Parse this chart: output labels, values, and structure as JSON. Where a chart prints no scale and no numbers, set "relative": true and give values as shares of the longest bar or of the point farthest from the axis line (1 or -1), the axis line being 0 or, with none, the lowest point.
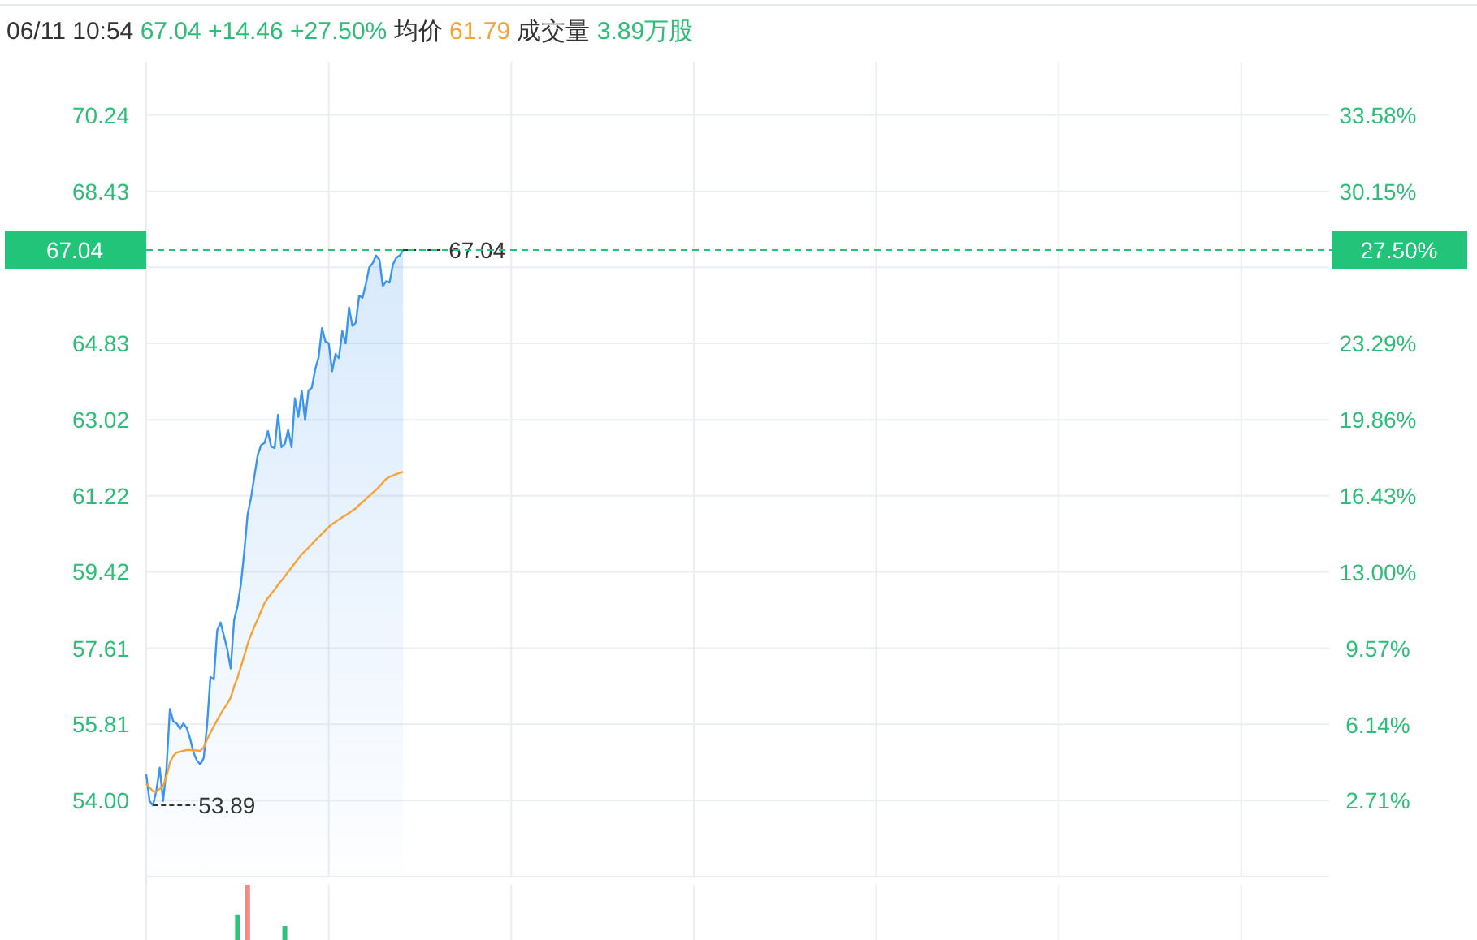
{
  "chart_data": [
    {
      "type": "line",
      "title": "06/11 10:54 67.04 +14.46 +27.50% 均价 61.79 成交量 3.89万股",
      "grid": true,
      "categories": [
        null,
        null,
        null,
        null,
        null,
        null,
        null,
        null,
        null,
        null,
        null,
        null,
        null,
        null,
        null,
        null,
        null,
        null,
        null,
        null,
        null,
        null,
        null,
        null,
        null,
        null,
        null,
        null,
        null,
        null,
        null,
        null,
        null,
        null,
        null,
        null,
        null,
        null,
        null,
        null,
        null,
        null,
        null,
        null,
        null,
        null,
        null,
        null,
        null,
        null,
        null,
        null,
        null,
        null,
        null,
        null,
        null,
        null,
        null,
        null,
        null,
        null,
        null,
        null,
        null,
        null,
        null,
        null,
        null,
        null,
        null,
        null,
        null,
        null,
        null,
        null,
        null,
        null,
        null,
        null,
        null,
        null,
        null,
        null,
        null,
        null,
        null,
        null,
        null,
        null,
        null,
        null,
        null,
        null,
        null,
        null,
        null,
        null,
        null,
        null,
        null,
        null,
        null,
        null,
        null,
        null,
        null,
        null,
        null,
        null,
        null,
        null,
        null,
        null,
        null,
        null,
        null,
        null,
        null,
        null,
        null,
        null,
        null,
        null,
        null,
        null,
        null,
        null,
        null,
        null,
        null,
        null,
        null,
        null,
        null,
        null,
        null,
        null,
        null,
        null,
        null,
        null,
        null,
        null,
        null,
        null,
        null,
        null,
        null,
        null,
        null,
        null,
        null,
        null,
        null,
        null,
        null,
        null,
        null,
        null,
        null,
        null,
        null,
        null,
        null,
        null,
        null,
        null,
        null,
        null,
        null,
        null,
        null,
        null,
        null,
        null,
        null,
        null,
        null,
        null,
        null,
        null,
        null,
        null,
        null,
        null,
        null,
        null,
        null,
        null,
        null,
        null,
        null,
        null,
        null,
        null,
        null,
        null,
        null,
        null,
        null,
        null,
        null,
        null,
        null,
        null,
        null,
        null,
        null,
        null,
        null,
        null,
        null,
        null,
        null,
        null,
        null,
        null,
        null,
        null,
        null,
        null,
        null,
        null,
        null,
        null,
        null,
        null,
        null,
        null,
        null,
        null,
        null,
        null,
        null,
        null,
        null,
        null,
        null,
        null,
        null,
        null,
        null,
        null,
        null,
        null,
        null,
        null,
        null,
        null,
        null,
        null,
        null,
        null,
        null,
        null,
        null,
        null,
        null,
        null,
        null,
        null,
        null,
        null,
        null,
        null,
        null,
        null,
        null,
        null,
        null,
        null,
        null,
        null,
        null,
        null,
        null,
        null,
        null,
        null,
        null,
        null,
        null,
        null,
        null,
        null,
        null,
        null,
        null,
        null,
        null,
        null,
        null,
        null,
        null,
        null,
        null,
        null,
        null,
        null,
        null,
        null,
        null,
        null,
        null,
        null,
        null,
        null,
        null,
        null,
        null,
        null,
        null,
        null,
        null,
        null,
        null,
        null,
        null,
        null,
        null,
        null,
        null,
        null,
        null,
        null,
        null,
        null,
        null,
        null,
        null,
        null,
        null,
        null,
        null,
        null,
        null,
        null,
        null,
        null,
        null,
        null,
        null,
        null,
        null,
        null,
        null,
        null,
        null,
        null,
        null
      ],
      "ylim": [
        52.2,
        71.5
      ],
      "yticks": [
        {
          "value": 54,
          "label": "54.00"
        },
        {
          "value": 55.81,
          "label": "55.81"
        },
        {
          "value": 57.61,
          "label": "57.61"
        },
        {
          "value": 59.42,
          "label": "59.42"
        },
        {
          "value": 61.22,
          "label": "61.22"
        },
        {
          "value": 63.02,
          "label": "63.02"
        },
        {
          "value": 64.83,
          "label": "64.83"
        },
        {
          "value": 66.63,
          "label": null
        },
        {
          "value": 68.43,
          "label": "68.43"
        },
        {
          "value": 70.24,
          "label": "70.24"
        }
      ],
      "y2lim": [
        -0.71,
        35.98
      ],
      "y2ticks": [
        {
          "value": 2.71,
          "label": "2.71%"
        },
        {
          "value": 6.14,
          "label": "6.14%"
        },
        {
          "value": 9.57,
          "label": "9.57%"
        },
        {
          "value": 13,
          "label": "13.00%"
        },
        {
          "value": 16.43,
          "label": "16.43%"
        },
        {
          "value": 19.86,
          "label": "19.86%"
        },
        {
          "value": 23.29,
          "label": "23.29%"
        },
        {
          "value": 26.72,
          "label": null
        },
        {
          "value": 30.15,
          "label": "30.15%"
        },
        {
          "value": 33.58,
          "label": "33.58%"
        }
      ],
      "series": [
        {
          "type": "area",
          "color": "#3d94ef",
          "values": [
            54.62,
            53.99,
            53.89,
            54.24,
            54.78,
            53.99,
            54.77,
            56.17,
            55.88,
            55.83,
            55.7,
            55.83,
            55.72,
            55.46,
            55.14,
            54.95,
            54.86,
            55.01,
            55.78,
            56.93,
            56.87,
            58.03,
            58.22,
            57.9,
            57.58,
            57.13,
            58.28,
            58.6,
            59.12,
            59.88,
            60.78,
            61.17,
            61.68,
            62.19,
            62.42,
            62.47,
            62.75,
            62.38,
            62.35,
            63.14,
            62.37,
            62.45,
            62.78,
            62.37,
            63.53,
            63.09,
            63.71,
            63.01,
            63.71,
            63.78,
            64.22,
            64.5,
            65.19,
            64.88,
            64.83,
            64.17,
            64.58,
            64.48,
            65.12,
            64.83,
            65.68,
            65.24,
            65.32,
            65.96,
            65.91,
            66.24,
            66.63,
            66.73,
            66.91,
            66.81,
            66.19,
            66.3,
            66.27,
            66.7,
            66.86,
            66.91,
            67.04,
            null,
            null,
            null,
            null,
            null,
            null,
            null,
            null,
            null,
            null,
            null,
            null,
            null,
            null,
            null,
            null,
            null,
            null,
            null,
            null,
            null,
            null,
            null,
            null,
            null,
            null,
            null,
            null,
            null,
            null,
            null,
            null,
            null,
            null,
            null,
            null,
            null,
            null,
            null,
            null,
            null,
            null,
            null,
            null,
            null,
            null,
            null,
            null,
            null,
            null,
            null,
            null,
            null,
            null,
            null,
            null,
            null,
            null,
            null,
            null,
            null,
            null,
            null,
            null,
            null,
            null,
            null,
            null,
            null,
            null,
            null,
            null,
            null,
            null,
            null,
            null,
            null,
            null,
            null,
            null,
            null,
            null,
            null,
            null,
            null,
            null,
            null,
            null,
            null,
            null,
            null,
            null,
            null,
            null,
            null,
            null,
            null,
            null,
            null,
            null,
            null,
            null,
            null,
            null,
            null,
            null,
            null,
            null,
            null,
            null,
            null,
            null,
            null,
            null,
            null,
            null,
            null,
            null,
            null,
            null,
            null,
            null,
            null,
            null,
            null,
            null,
            null,
            null,
            null,
            null,
            null,
            null,
            null,
            null,
            null,
            null,
            null,
            null,
            null,
            null,
            null,
            null,
            null,
            null,
            null,
            null,
            null,
            null,
            null,
            null,
            null,
            null,
            null,
            null,
            null,
            null,
            null,
            null,
            null,
            null,
            null,
            null,
            null,
            null,
            null,
            null,
            null,
            null,
            null,
            null,
            null,
            null,
            null,
            null,
            null,
            null,
            null,
            null,
            null,
            null,
            null,
            null,
            null,
            null,
            null,
            null,
            null,
            null,
            null,
            null,
            null,
            null,
            null,
            null,
            null,
            null,
            null,
            null,
            null,
            null,
            null,
            null,
            null,
            null,
            null,
            null,
            null,
            null,
            null,
            null,
            null,
            null,
            null,
            null,
            null,
            null,
            null,
            null,
            null,
            null,
            null,
            null,
            null,
            null,
            null,
            null,
            null,
            null,
            null,
            null,
            null,
            null,
            null,
            null,
            null,
            null,
            null,
            null,
            null,
            null,
            null,
            null,
            null,
            null,
            null,
            null,
            null,
            null,
            null,
            null,
            null,
            null,
            null,
            null,
            null,
            null,
            null,
            null,
            null,
            null,
            null,
            null,
            null,
            null,
            null,
            null,
            null,
            null,
            null,
            null,
            null,
            null,
            null,
            null
          ]
        },
        {
          "type": "line",
          "color": "#f5a236",
          "values": [
            54.4,
            54.31,
            54.22,
            54.21,
            54.28,
            54.35,
            54.58,
            54.9,
            55.06,
            55.14,
            55.16,
            55.18,
            55.2,
            55.2,
            55.19,
            55.19,
            55.18,
            55.26,
            55.45,
            55.61,
            55.76,
            55.91,
            56.05,
            56.18,
            56.3,
            56.44,
            56.7,
            56.91,
            57.17,
            57.43,
            57.71,
            57.93,
            58.12,
            58.3,
            58.49,
            58.68,
            58.8,
            58.9,
            59.0,
            59.11,
            59.21,
            59.31,
            59.42,
            59.52,
            59.63,
            59.73,
            59.83,
            59.91,
            59.99,
            60.07,
            60.16,
            60.24,
            60.32,
            60.4,
            60.48,
            60.55,
            60.6,
            60.66,
            60.71,
            60.76,
            60.81,
            60.87,
            60.92,
            61.0,
            61.07,
            61.14,
            61.22,
            61.29,
            61.36,
            61.44,
            61.53,
            61.62,
            61.67,
            61.7,
            61.73,
            61.76,
            61.79,
            null,
            null,
            null,
            null,
            null,
            null,
            null,
            null,
            null,
            null,
            null,
            null,
            null,
            null,
            null,
            null,
            null,
            null,
            null,
            null,
            null,
            null,
            null,
            null,
            null,
            null,
            null,
            null,
            null,
            null,
            null,
            null,
            null,
            null,
            null,
            null,
            null,
            null,
            null,
            null,
            null,
            null,
            null,
            null,
            null,
            null,
            null,
            null,
            null,
            null,
            null,
            null,
            null,
            null,
            null,
            null,
            null,
            null,
            null,
            null,
            null,
            null,
            null,
            null,
            null,
            null,
            null,
            null,
            null,
            null,
            null,
            null,
            null,
            null,
            null,
            null,
            null,
            null,
            null,
            null,
            null,
            null,
            null,
            null,
            null,
            null,
            null,
            null,
            null,
            null,
            null,
            null,
            null,
            null,
            null,
            null,
            null,
            null,
            null,
            null,
            null,
            null,
            null,
            null,
            null,
            null,
            null,
            null,
            null,
            null,
            null,
            null,
            null,
            null,
            null,
            null,
            null,
            null,
            null,
            null,
            null,
            null,
            null,
            null,
            null,
            null,
            null,
            null,
            null,
            null,
            null,
            null,
            null,
            null,
            null,
            null,
            null,
            null,
            null,
            null,
            null,
            null,
            null,
            null,
            null,
            null,
            null,
            null,
            null,
            null,
            null,
            null,
            null,
            null,
            null,
            null,
            null,
            null,
            null,
            null,
            null,
            null,
            null,
            null,
            null,
            null,
            null,
            null,
            null,
            null,
            null,
            null,
            null,
            null,
            null,
            null,
            null,
            null,
            null,
            null,
            null,
            null,
            null,
            null,
            null,
            null,
            null,
            null,
            null,
            null,
            null,
            null,
            null,
            null,
            null,
            null,
            null,
            null,
            null,
            null,
            null,
            null,
            null,
            null,
            null,
            null,
            null,
            null,
            null,
            null,
            null,
            null,
            null,
            null,
            null,
            null,
            null,
            null,
            null,
            null,
            null,
            null,
            null,
            null,
            null,
            null,
            null,
            null,
            null,
            null,
            null,
            null,
            null,
            null,
            null,
            null,
            null,
            null,
            null,
            null,
            null,
            null,
            null,
            null,
            null,
            null,
            null,
            null,
            null,
            null,
            null,
            null,
            null,
            null,
            null,
            null,
            null,
            null,
            null,
            null,
            null,
            null,
            null,
            null,
            null,
            null,
            null,
            null,
            null,
            null,
            null,
            null,
            null,
            null
          ]
        }
      ],
      "ref_lines": [
        {
          "axis": "y",
          "value": 67.04,
          "label": "67.04",
          "color": "#22c47a",
          "line_style": "dashed"
        }
      ],
      "annotations": [
        "27.50%",
        {
          "text": "67.04",
          "y": 67.04
        },
        "53.89"
      ]
    },
    {
      "type": "bar",
      "relative": true,
      "grid": "x",
      "categories": [
        null,
        null,
        null,
        null,
        null,
        null,
        null,
        null,
        null,
        null,
        null,
        null,
        null,
        null,
        null,
        null,
        null,
        null,
        null,
        null,
        null,
        null,
        null,
        null,
        null,
        null,
        null,
        null,
        null,
        null,
        null,
        null,
        null,
        null,
        null,
        null,
        null,
        null,
        null,
        null,
        null,
        null,
        null,
        null,
        null,
        null,
        null,
        null,
        null,
        null,
        null,
        null,
        null,
        null,
        null,
        null,
        null,
        null,
        null,
        null,
        null,
        null,
        null,
        null,
        null,
        null,
        null,
        null,
        null,
        null,
        null,
        null,
        null,
        null,
        null,
        null,
        null,
        null,
        null,
        null,
        null,
        null,
        null,
        null,
        null,
        null,
        null,
        null,
        null,
        null,
        null,
        null,
        null,
        null,
        null,
        null,
        null,
        null,
        null,
        null,
        null,
        null,
        null,
        null,
        null,
        null,
        null,
        null,
        null,
        null,
        null,
        null,
        null,
        null,
        null,
        null,
        null,
        null,
        null,
        null,
        null,
        null,
        null,
        null,
        null,
        null,
        null,
        null,
        null,
        null,
        null,
        null,
        null,
        null,
        null,
        null,
        null,
        null,
        null,
        null,
        null,
        null,
        null,
        null,
        null,
        null,
        null,
        null,
        null,
        null,
        null,
        null,
        null,
        null,
        null,
        null,
        null,
        null,
        null,
        null,
        null,
        null,
        null,
        null,
        null,
        null,
        null,
        null,
        null,
        null,
        null,
        null,
        null,
        null,
        null,
        null,
        null,
        null,
        null,
        null,
        null,
        null,
        null,
        null,
        null,
        null,
        null,
        null,
        null,
        null,
        null,
        null,
        null,
        null,
        null,
        null,
        null,
        null,
        null,
        null,
        null,
        null,
        null,
        null,
        null,
        null,
        null,
        null,
        null,
        null,
        null,
        null,
        null,
        null,
        null,
        null,
        null,
        null,
        null,
        null,
        null,
        null,
        null,
        null,
        null,
        null,
        null,
        null,
        null,
        null,
        null,
        null,
        null,
        null,
        null,
        null,
        null,
        null,
        null,
        null,
        null,
        null,
        null,
        null,
        null,
        null,
        null,
        null,
        null,
        null,
        null,
        null,
        null,
        null,
        null,
        null,
        null,
        null,
        null,
        null,
        null,
        null,
        null,
        null,
        null,
        null,
        null,
        null,
        null,
        null,
        null,
        null,
        null,
        null,
        null,
        null,
        null,
        null,
        null,
        null,
        null,
        null,
        null,
        null,
        null,
        null,
        null,
        null,
        null,
        null,
        null,
        null,
        null,
        null,
        null,
        null,
        null,
        null,
        null,
        null,
        null,
        null,
        null,
        null,
        null,
        null,
        null,
        null,
        null,
        null,
        null,
        null,
        null,
        null,
        null,
        null,
        null,
        null,
        null,
        null,
        null,
        null,
        null,
        null,
        null,
        null,
        null,
        null,
        null,
        null,
        null,
        null,
        null,
        null,
        null,
        null,
        null,
        null,
        null,
        null,
        null,
        null,
        null,
        null,
        null,
        null,
        null,
        null,
        null,
        null,
        null
      ],
      "series": [
        {
          "color": "#2fc27c",
          "values": [
            null,
            null,
            null,
            null,
            null,
            null,
            null,
            null,
            null,
            null,
            null,
            null,
            null,
            null,
            null,
            null,
            null,
            null,
            null,
            null,
            null,
            null,
            null,
            null,
            null,
            null,
            null,
            0.46,
            null,
            null,
            null,
            null,
            null,
            null,
            null,
            null,
            null,
            null,
            null,
            null,
            null,
            0.25,
            null,
            null,
            null,
            null,
            null,
            null,
            null,
            null,
            null,
            null,
            null,
            null,
            null,
            null,
            null,
            null,
            null,
            null,
            null,
            null,
            null,
            null,
            null,
            null,
            null,
            null,
            null,
            null,
            null,
            null,
            null,
            null,
            null,
            null,
            null,
            null,
            null,
            null,
            null,
            null,
            null,
            null,
            null,
            null,
            null,
            null,
            null,
            null,
            null,
            null,
            null,
            null,
            null,
            null,
            null,
            null,
            null,
            null,
            null,
            null,
            null,
            null,
            null,
            null,
            null,
            null,
            null,
            null,
            null,
            null,
            null,
            null,
            null,
            null,
            null,
            null,
            null,
            null,
            null,
            null,
            null,
            null,
            null,
            null,
            null,
            null,
            null,
            null,
            null,
            null,
            null,
            null,
            null,
            null,
            null,
            null,
            null,
            null,
            null,
            null,
            null,
            null,
            null,
            null,
            null,
            null,
            null,
            null,
            null,
            null,
            null,
            null,
            null,
            null,
            null,
            null,
            null,
            null,
            null,
            null,
            null,
            null,
            null,
            null,
            null,
            null,
            null,
            null,
            null,
            null,
            null,
            null,
            null,
            null,
            null,
            null,
            null,
            null,
            null,
            null,
            null,
            null,
            null,
            null,
            null,
            null,
            null,
            null,
            null,
            null,
            null,
            null,
            null,
            null,
            null,
            null,
            null,
            null,
            null,
            null,
            null,
            null,
            null,
            null,
            null,
            null,
            null,
            null,
            null,
            null,
            null,
            null,
            null,
            null,
            null,
            null,
            null,
            null,
            null,
            null,
            null,
            null,
            null,
            null,
            null,
            null,
            null,
            null,
            null,
            null,
            null,
            null,
            null,
            null,
            null,
            null,
            null,
            null,
            null,
            null,
            null,
            null,
            null,
            null,
            null,
            null,
            null,
            null,
            null,
            null,
            null,
            null,
            null,
            null,
            null,
            null,
            null,
            null,
            null,
            null,
            null,
            null,
            null,
            null,
            null,
            null,
            null,
            null,
            null,
            null,
            null,
            null,
            null,
            null,
            null,
            null,
            null,
            null,
            null,
            null,
            null,
            null,
            null,
            null,
            null,
            null,
            null,
            null,
            null,
            null,
            null,
            null,
            null,
            null,
            null,
            null,
            null,
            null,
            null,
            null,
            null,
            null,
            null,
            null,
            null,
            null,
            null,
            null,
            null,
            null,
            null,
            null,
            null,
            null,
            null,
            null,
            null,
            null,
            null,
            null,
            null,
            null,
            null,
            null,
            null,
            null,
            null,
            null,
            null,
            null,
            null,
            null,
            null,
            null,
            null,
            null,
            null,
            null,
            null,
            null,
            null,
            null,
            null,
            null,
            null,
            null,
            null,
            null,
            null
          ]
        },
        {
          "color": "#f28b86",
          "values": [
            null,
            null,
            null,
            null,
            null,
            null,
            null,
            null,
            null,
            null,
            null,
            null,
            null,
            null,
            null,
            null,
            null,
            null,
            null,
            null,
            null,
            null,
            null,
            null,
            null,
            null,
            null,
            null,
            null,
            null,
            1,
            null,
            null,
            null,
            null,
            null,
            null,
            null,
            null,
            null,
            null,
            null,
            null,
            null,
            null,
            null,
            null,
            null,
            null,
            null,
            null,
            null,
            null,
            null,
            null,
            null,
            null,
            null,
            null,
            null,
            null,
            null,
            null,
            null,
            null,
            null,
            null,
            null,
            null,
            null,
            null,
            null,
            null,
            null,
            null,
            null,
            null,
            null,
            null,
            null,
            null,
            null,
            null,
            null,
            null,
            null,
            null,
            null,
            null,
            null,
            null,
            null,
            null,
            null,
            null,
            null,
            null,
            null,
            null,
            null,
            null,
            null,
            null,
            null,
            null,
            null,
            null,
            null,
            null,
            null,
            null,
            null,
            null,
            null,
            null,
            null,
            null,
            null,
            null,
            null,
            null,
            null,
            null,
            null,
            null,
            null,
            null,
            null,
            null,
            null,
            null,
            null,
            null,
            null,
            null,
            null,
            null,
            null,
            null,
            null,
            null,
            null,
            null,
            null,
            null,
            null,
            null,
            null,
            null,
            null,
            null,
            null,
            null,
            null,
            null,
            null,
            null,
            null,
            null,
            null,
            null,
            null,
            null,
            null,
            null,
            null,
            null,
            null,
            null,
            null,
            null,
            null,
            null,
            null,
            null,
            null,
            null,
            null,
            null,
            null,
            null,
            null,
            null,
            null,
            null,
            null,
            null,
            null,
            null,
            null,
            null,
            null,
            null,
            null,
            null,
            null,
            null,
            null,
            null,
            null,
            null,
            null,
            null,
            null,
            null,
            null,
            null,
            null,
            null,
            null,
            null,
            null,
            null,
            null,
            null,
            null,
            null,
            null,
            null,
            null,
            null,
            null,
            null,
            null,
            null,
            null,
            null,
            null,
            null,
            null,
            null,
            null,
            null,
            null,
            null,
            null,
            null,
            null,
            null,
            null,
            null,
            null,
            null,
            null,
            null,
            null,
            null,
            null,
            null,
            null,
            null,
            null,
            null,
            null,
            null,
            null,
            null,
            null,
            null,
            null,
            null,
            null,
            null,
            null,
            null,
            null,
            null,
            null,
            null,
            null,
            null,
            null,
            null,
            null,
            null,
            null,
            null,
            null,
            null,
            null,
            null,
            null,
            null,
            null,
            null,
            null,
            null,
            null,
            null,
            null,
            null,
            null,
            null,
            null,
            null,
            null,
            null,
            null,
            null,
            null,
            null,
            null,
            null,
            null,
            null,
            null,
            null,
            null,
            null,
            null,
            null,
            null,
            null,
            null,
            null,
            null,
            null,
            null,
            null,
            null,
            null,
            null,
            null,
            null,
            null,
            null,
            null,
            null,
            null,
            null,
            null,
            null,
            null,
            null,
            null,
            null,
            null,
            null,
            null,
            null,
            null,
            null,
            null,
            null,
            null,
            null,
            null,
            null,
            null,
            null,
            null
          ]
        }
      ]
    }
  ]
}
